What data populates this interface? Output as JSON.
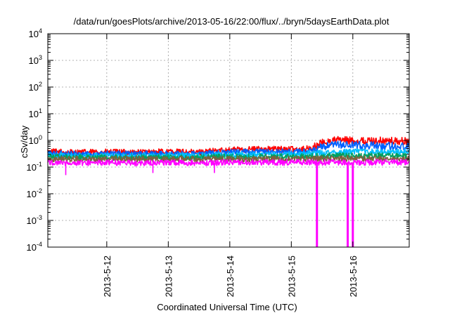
{
  "chart_data": {
    "type": "line",
    "title": "/data/run/goesPlots/archive/2013-05-16/22:00/flux/../bryn/5daysEarthData.plot",
    "xlabel": "Coordinated Universal Time (UTC)",
    "ylabel": "cSv/day",
    "y_scale": "log",
    "ylim": [
      0.0001,
      10000
    ],
    "xlim": [
      "2013-05-11 01:00",
      "2013-05-16 22:00"
    ],
    "x_ticks": [
      {
        "x": "2013-05-12 00:00",
        "label": "2013-5-12"
      },
      {
        "x": "2013-05-13 00:00",
        "label": "2013-5-13"
      },
      {
        "x": "2013-05-14 00:00",
        "label": "2013-5-14"
      },
      {
        "x": "2013-05-15 00:00",
        "label": "2013-5-15"
      },
      {
        "x": "2013-05-16 00:00",
        "label": "2013-5-16"
      }
    ],
    "y_ticks": [
      {
        "base": "10",
        "exp": "-4",
        "value": 0.0001
      },
      {
        "base": "10",
        "exp": "-3",
        "value": 0.001
      },
      {
        "base": "10",
        "exp": "-2",
        "value": 0.01
      },
      {
        "base": "10",
        "exp": "-1",
        "value": 0.1
      },
      {
        "base": "10",
        "exp": "0",
        "value": 1
      },
      {
        "base": "10",
        "exp": "1",
        "value": 10
      },
      {
        "base": "10",
        "exp": "2",
        "value": 100
      },
      {
        "base": "10",
        "exp": "3",
        "value": 1000
      },
      {
        "base": "10",
        "exp": "4",
        "value": 10000
      }
    ],
    "grid": true,
    "legend": "none",
    "series": [
      {
        "color": "#ff0000",
        "x": [
          "2013-05-11 01:00",
          "2013-05-11 12:00",
          "2013-05-12 00:00",
          "2013-05-12 12:00",
          "2013-05-13 00:00",
          "2013-05-13 12:00",
          "2013-05-14 00:00",
          "2013-05-14 12:00",
          "2013-05-15 00:00",
          "2013-05-15 08:00",
          "2013-05-15 12:00",
          "2013-05-15 18:00",
          "2013-05-16 00:00",
          "2013-05-16 12:00",
          "2013-05-16 22:00"
        ],
        "y": [
          0.38,
          0.36,
          0.37,
          0.36,
          0.38,
          0.36,
          0.45,
          0.48,
          0.47,
          0.5,
          0.8,
          1.05,
          0.95,
          0.95,
          0.9
        ]
      },
      {
        "color": "#0060ff",
        "x": [
          "2013-05-11 01:00",
          "2013-05-11 12:00",
          "2013-05-12 00:00",
          "2013-05-12 12:00",
          "2013-05-13 00:00",
          "2013-05-13 12:00",
          "2013-05-14 00:00",
          "2013-05-14 12:00",
          "2013-05-15 00:00",
          "2013-05-15 08:00",
          "2013-05-15 12:00",
          "2013-05-15 18:00",
          "2013-05-16 00:00",
          "2013-05-16 12:00",
          "2013-05-16 22:00"
        ],
        "y": [
          0.33,
          0.31,
          0.32,
          0.31,
          0.32,
          0.31,
          0.36,
          0.38,
          0.37,
          0.4,
          0.55,
          0.7,
          0.65,
          0.62,
          0.58
        ]
      },
      {
        "color": "#00bfff",
        "x": [
          "2013-05-11 01:00",
          "2013-05-12 00:00",
          "2013-05-13 00:00",
          "2013-05-14 00:00",
          "2013-05-15 00:00",
          "2013-05-15 12:00",
          "2013-05-16 00:00",
          "2013-05-16 22:00"
        ],
        "y": [
          0.27,
          0.26,
          0.26,
          0.29,
          0.3,
          0.34,
          0.38,
          0.36
        ]
      },
      {
        "color": "#00a060",
        "x": [
          "2013-05-11 01:00",
          "2013-05-12 00:00",
          "2013-05-13 00:00",
          "2013-05-14 00:00",
          "2013-05-15 00:00",
          "2013-05-15 12:00",
          "2013-05-16 00:00",
          "2013-05-16 22:00"
        ],
        "y": [
          0.24,
          0.23,
          0.23,
          0.24,
          0.25,
          0.26,
          0.27,
          0.26
        ]
      },
      {
        "color": "#806040",
        "x": [
          "2013-05-11 01:00",
          "2013-05-12 00:00",
          "2013-05-13 00:00",
          "2013-05-14 00:00",
          "2013-05-15 00:00",
          "2013-05-16 00:00",
          "2013-05-16 22:00"
        ],
        "y": [
          0.2,
          0.2,
          0.2,
          0.2,
          0.2,
          0.21,
          0.2
        ]
      },
      {
        "color": "#ff00ff",
        "x": [
          "2013-05-11 01:00",
          "2013-05-11 12:00",
          "2013-05-12 00:00",
          "2013-05-12 12:00",
          "2013-05-13 00:00",
          "2013-05-13 12:00",
          "2013-05-14 00:00",
          "2013-05-14 12:00",
          "2013-05-15 00:00",
          "2013-05-15 08:00",
          "2013-05-15 12:00",
          "2013-05-16 00:00",
          "2013-05-16 12:00",
          "2013-05-16 22:00"
        ],
        "y": [
          0.15,
          0.14,
          0.15,
          0.14,
          0.15,
          0.14,
          0.15,
          0.15,
          0.15,
          0.15,
          0.15,
          0.15,
          0.15,
          0.15
        ],
        "dropouts": [
          {
            "x": "2013-05-15 10:00",
            "y": 0.0001
          },
          {
            "x": "2013-05-15 22:00",
            "y": 0.0001
          },
          {
            "x": "2013-05-16 00:00",
            "y": 0.0001
          }
        ],
        "dips": [
          {
            "x": "2013-05-11 08:00",
            "y": 0.05
          },
          {
            "x": "2013-05-12 18:00",
            "y": 0.06
          },
          {
            "x": "2013-05-13 18:00",
            "y": 0.06
          }
        ]
      }
    ]
  }
}
